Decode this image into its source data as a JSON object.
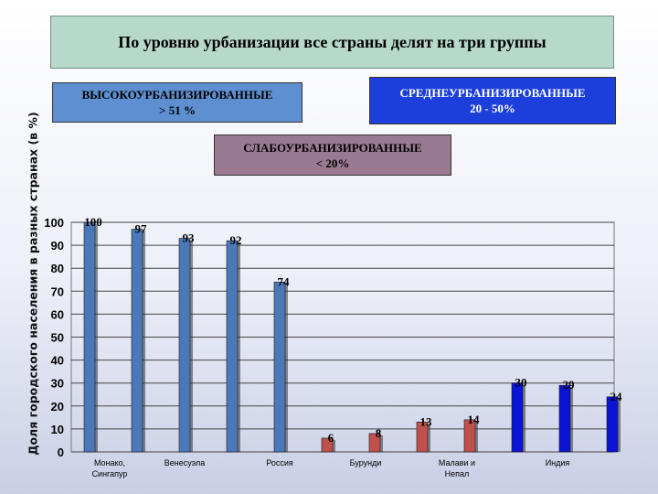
{
  "title": "По уровню урбанизации все страны делят на три группы",
  "groups": {
    "high": {
      "name": "ВЫСОКОУРБАНИЗИРОВАННЫЕ",
      "range": "> 51 %"
    },
    "medium": {
      "name": "СРЕДНЕУРБАНИЗИРОВАННЫЕ",
      "range": "20 - 50%"
    },
    "low": {
      "name": "СЛАБОУРБАНИЗИРОВАННЫЕ",
      "range": "< 20%"
    }
  },
  "colors": {
    "high": "#4a78b8",
    "low": "#c0504d",
    "medium": "#0a14d6"
  },
  "chart_data": {
    "type": "bar",
    "ylabel": "Доля городского населения в разных странах (в %)",
    "ylim": [
      0,
      100
    ],
    "yticks": [
      0,
      10,
      20,
      30,
      40,
      50,
      60,
      70,
      80,
      90,
      100
    ],
    "grid": true,
    "categories": [
      "Монако, Сингапур",
      "Венесуэла",
      "Россия",
      "Бурунди",
      "Малави и Непал",
      "Индия"
    ],
    "bars": [
      {
        "value": 100,
        "group": "high"
      },
      {
        "value": 97,
        "group": "high"
      },
      {
        "value": 93,
        "group": "high"
      },
      {
        "value": 92,
        "group": "high"
      },
      {
        "value": 74,
        "group": "high"
      },
      {
        "value": 6,
        "group": "low"
      },
      {
        "value": 8,
        "group": "low"
      },
      {
        "value": 13,
        "group": "low"
      },
      {
        "value": 14,
        "group": "low"
      },
      {
        "value": 30,
        "group": "medium"
      },
      {
        "value": 29,
        "group": "medium"
      },
      {
        "value": 24,
        "group": "medium"
      }
    ]
  }
}
